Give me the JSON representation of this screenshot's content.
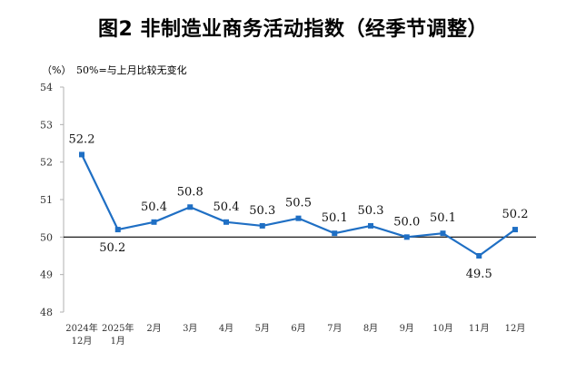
{
  "chart_data": {
    "type": "line",
    "title": "图2  非制造业商务活动指数（经季节调整）",
    "unit_label": "（%）",
    "reference_note": "50%=与上月比较无变化",
    "categories": [
      [
        "2024年",
        "12月"
      ],
      [
        "2025年",
        "1月"
      ],
      [
        "2月"
      ],
      [
        "3月"
      ],
      [
        "4月"
      ],
      [
        "5月"
      ],
      [
        "6月"
      ],
      [
        "7月"
      ],
      [
        "8月"
      ],
      [
        "9月"
      ],
      [
        "10月"
      ],
      [
        "11月"
      ],
      [
        "12月"
      ]
    ],
    "values": [
      52.2,
      50.2,
      50.4,
      50.8,
      50.4,
      50.3,
      50.5,
      50.1,
      50.3,
      50.0,
      50.1,
      49.5,
      50.2
    ],
    "value_labels": [
      "52.2",
      "50.2",
      "50.4",
      "50.8",
      "50.4",
      "50.3",
      "50.5",
      "50.1",
      "50.3",
      "50.0",
      "50.1",
      "49.5",
      "50.2"
    ],
    "label_positions": [
      "above",
      "below",
      "above",
      "above",
      "above",
      "above",
      "above",
      "above",
      "above",
      "above",
      "above",
      "below",
      "above"
    ],
    "y_ticks": [
      48,
      49,
      50,
      51,
      52,
      53,
      54
    ],
    "ylim": [
      48,
      54
    ],
    "reference_line": 50,
    "grid": false,
    "line_color": "#1f6fc4",
    "reference_color": "#000000",
    "axis_color": "#b0b0b0"
  }
}
